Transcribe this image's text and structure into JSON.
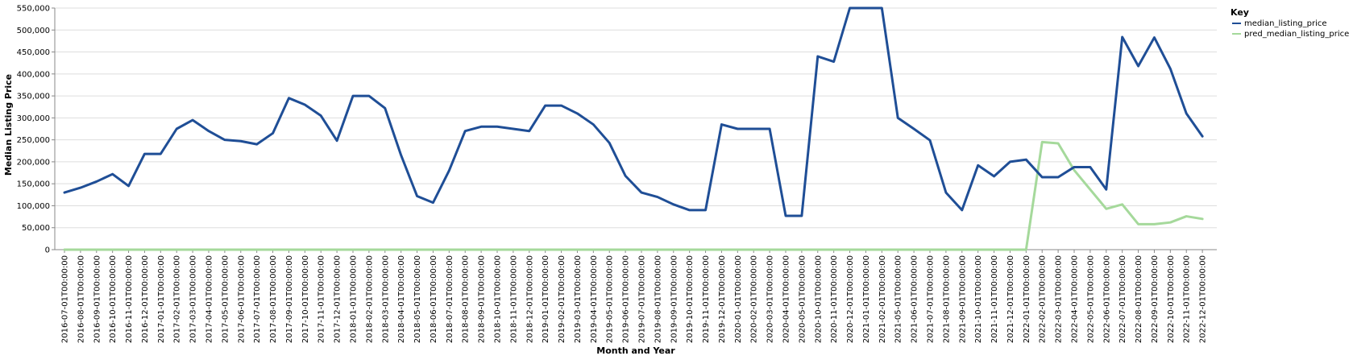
{
  "chart_data": {
    "type": "line",
    "xlabel": "Month and Year",
    "ylabel": "Median Listing Price",
    "ylim": [
      0,
      550000
    ],
    "y_ticks": [
      0,
      50000,
      100000,
      150000,
      200000,
      250000,
      300000,
      350000,
      400000,
      450000,
      500000,
      550000
    ],
    "y_tick_labels": [
      "0",
      "50,000",
      "100,000",
      "150,000",
      "200,000",
      "250,000",
      "300,000",
      "350,000",
      "400,000",
      "450,000",
      "500,000",
      "550,000"
    ],
    "grid": true,
    "legend": {
      "title": "Key",
      "placement": "right"
    },
    "x": [
      "2016-07-01T00:00:00",
      "2016-08-01T00:00:00",
      "2016-09-01T00:00:00",
      "2016-10-01T00:00:00",
      "2016-11-01T00:00:00",
      "2016-12-01T00:00:00",
      "2017-01-01T00:00:00",
      "2017-02-01T00:00:00",
      "2017-03-01T00:00:00",
      "2017-04-01T00:00:00",
      "2017-05-01T00:00:00",
      "2017-06-01T00:00:00",
      "2017-07-01T00:00:00",
      "2017-08-01T00:00:00",
      "2017-09-01T00:00:00",
      "2017-10-01T00:00:00",
      "2017-11-01T00:00:00",
      "2017-12-01T00:00:00",
      "2018-01-01T00:00:00",
      "2018-02-01T00:00:00",
      "2018-03-01T00:00:00",
      "2018-04-01T00:00:00",
      "2018-05-01T00:00:00",
      "2018-06-01T00:00:00",
      "2018-07-01T00:00:00",
      "2018-08-01T00:00:00",
      "2018-09-01T00:00:00",
      "2018-10-01T00:00:00",
      "2018-11-01T00:00:00",
      "2018-12-01T00:00:00",
      "2019-01-01T00:00:00",
      "2019-02-01T00:00:00",
      "2019-03-01T00:00:00",
      "2019-04-01T00:00:00",
      "2019-05-01T00:00:00",
      "2019-06-01T00:00:00",
      "2019-07-01T00:00:00",
      "2019-08-01T00:00:00",
      "2019-09-01T00:00:00",
      "2019-10-01T00:00:00",
      "2019-11-01T00:00:00",
      "2019-12-01T00:00:00",
      "2020-01-01T00:00:00",
      "2020-02-01T00:00:00",
      "2020-03-01T00:00:00",
      "2020-04-01T00:00:00",
      "2020-05-01T00:00:00",
      "2020-10-01T00:00:00",
      "2020-11-01T00:00:00",
      "2020-12-01T00:00:00",
      "2021-01-01T00:00:00",
      "2021-02-01T00:00:00",
      "2021-05-01T00:00:00",
      "2021-06-01T00:00:00",
      "2021-07-01T00:00:00",
      "2021-08-01T00:00:00",
      "2021-09-01T00:00:00",
      "2021-10-01T00:00:00",
      "2021-11-01T00:00:00",
      "2021-12-01T00:00:00",
      "2022-01-01T00:00:00",
      "2022-02-01T00:00:00",
      "2022-03-01T00:00:00",
      "2022-04-01T00:00:00",
      "2022-05-01T00:00:00",
      "2022-06-01T00:00:00",
      "2022-07-01T00:00:00",
      "2022-08-01T00:00:00",
      "2022-09-01T00:00:00",
      "2022-10-01T00:00:00",
      "2022-11-01T00:00:00",
      "2022-12-01T00:00:00"
    ],
    "series": [
      {
        "name": "median_listing_price",
        "color": "#1f4e96",
        "values": [
          130000,
          141000,
          155000,
          172000,
          145000,
          218000,
          218000,
          275000,
          295000,
          270000,
          250000,
          247000,
          240000,
          265000,
          345000,
          330000,
          305000,
          248000,
          350000,
          350000,
          322000,
          215000,
          122000,
          107000,
          180000,
          270000,
          280000,
          280000,
          275000,
          270000,
          328000,
          328000,
          310000,
          285000,
          243000,
          168000,
          130000,
          120000,
          103000,
          90000,
          90000,
          285000,
          275000,
          275000,
          275000,
          77000,
          77000,
          440000,
          428000,
          550000,
          550000,
          550000,
          300000,
          275000,
          249000,
          130000,
          90000,
          192000,
          167000,
          200000,
          205000,
          165000,
          165000,
          188000,
          188000,
          137000,
          484000,
          418000,
          483000,
          412000,
          310000,
          258000
        ]
      },
      {
        "name": "pred_median_listing_price",
        "color": "#a5d99b",
        "values": [
          0,
          0,
          0,
          0,
          0,
          0,
          0,
          0,
          0,
          0,
          0,
          0,
          0,
          0,
          0,
          0,
          0,
          0,
          0,
          0,
          0,
          0,
          0,
          0,
          0,
          0,
          0,
          0,
          0,
          0,
          0,
          0,
          0,
          0,
          0,
          0,
          0,
          0,
          0,
          0,
          0,
          0,
          0,
          0,
          0,
          0,
          0,
          0,
          0,
          0,
          0,
          0,
          0,
          0,
          0,
          0,
          0,
          0,
          0,
          0,
          0,
          245000,
          242000,
          181000,
          137000,
          93000,
          103000,
          58000,
          58000,
          62000,
          76000,
          70000
        ]
      }
    ]
  }
}
